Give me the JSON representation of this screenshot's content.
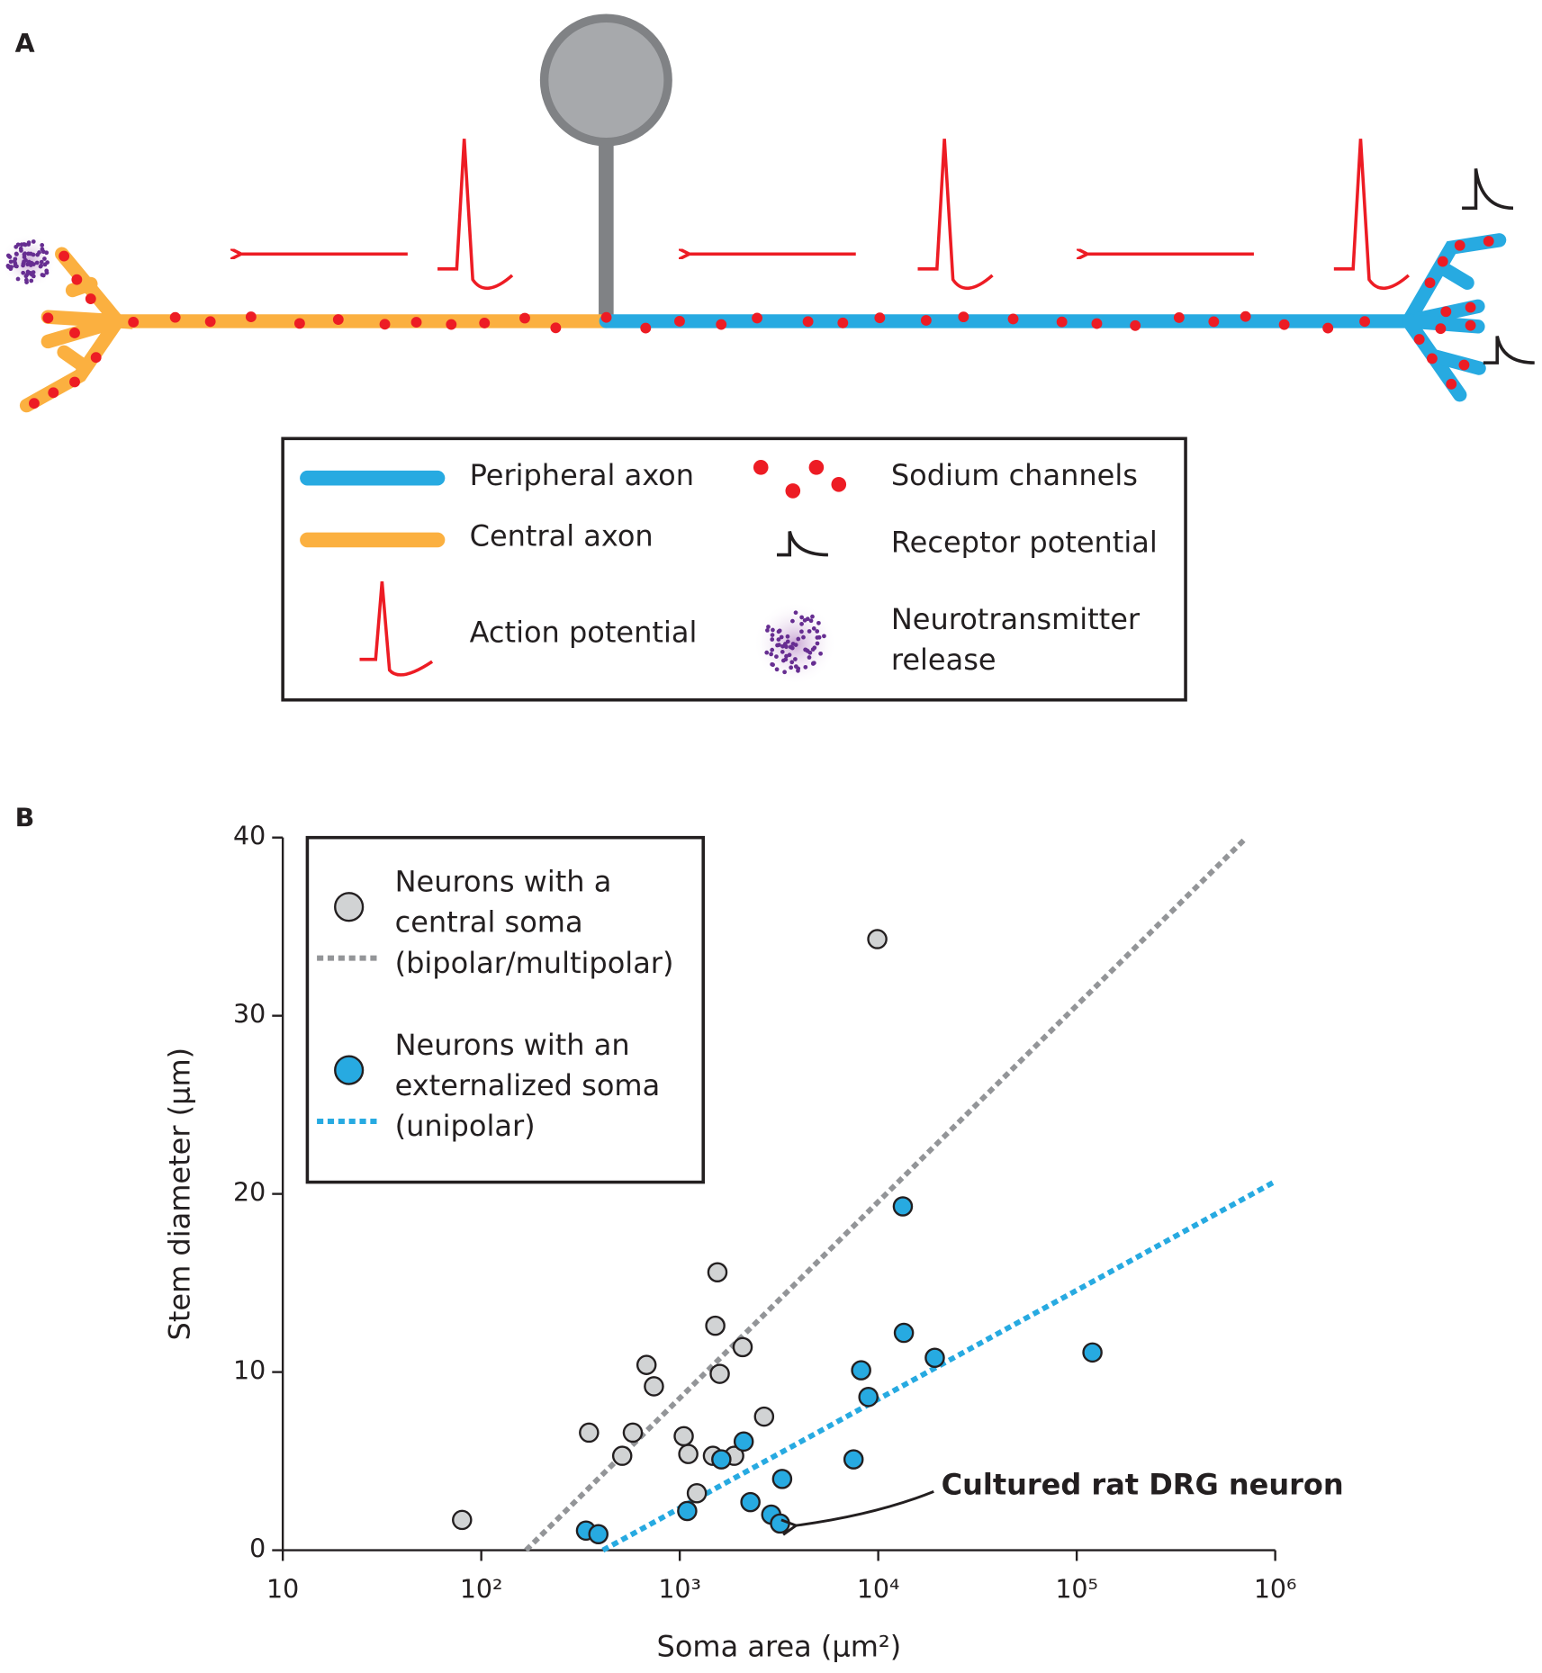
{
  "panel_a": {
    "label": "A",
    "legend": {
      "peripheral": "Peripheral axon",
      "central": "Central axon",
      "action": "Action potential",
      "sodium": "Sodium channels",
      "receptor": "Receptor potential",
      "release": [
        "Neurotransmitter",
        "release"
      ]
    }
  },
  "panel_b_label": "B",
  "chart_data": {
    "type": "scatter",
    "xlabel": "Soma area (μm²)",
    "ylabel": "Stem diameter (μm)",
    "xscale": "log",
    "xlim": [
      10,
      1000000
    ],
    "xticks": [
      10,
      {
        "value": 100,
        "label": "10²"
      },
      {
        "value": 1000,
        "label": "10³"
      },
      {
        "value": 10000,
        "label": "10⁴"
      },
      {
        "value": 100000,
        "label": "10⁵"
      },
      {
        "value": 1000000,
        "label": "10⁶"
      }
    ],
    "ylim": [
      0,
      40
    ],
    "yticks": [
      0,
      10,
      20,
      30,
      40
    ],
    "legend": "upper left",
    "annotation": "Cultured rat DRG neuron",
    "series": [
      {
        "name": [
          "Neurons with a",
          "central soma",
          "(bipolar/multipolar)"
        ],
        "color": "#d1d3d4",
        "line_color": "#939598",
        "x": [
          80,
          349,
          513,
          580,
          680,
          741,
          1047,
          1104,
          1219,
          1469,
          1548,
          1510,
          1590,
          1880,
          2074,
          2660,
          9890
        ],
        "values": [
          1.7,
          6.6,
          5.3,
          6.6,
          10.4,
          9.2,
          6.4,
          5.4,
          3.2,
          5.3,
          15.6,
          12.6,
          9.9,
          5.3,
          11.4,
          7.5,
          34.3
        ],
        "fit": {
          "x": [
            168,
            716000
          ],
          "values": [
            0,
            40
          ]
        }
      },
      {
        "name": [
          "Neurons with an",
          "externalized soma",
          "(unipolar)"
        ],
        "color": "#27aae1",
        "line_color": "#27aae1",
        "x": [
          337,
          389,
          1090,
          1620,
          2100,
          2270,
          2890,
          3200,
          3280,
          7510,
          8200,
          8920,
          13300,
          13460,
          19270,
          120000
        ],
        "values": [
          1.1,
          0.9,
          2.2,
          5.1,
          6.1,
          2.7,
          2.0,
          1.5,
          4.0,
          5.1,
          10.1,
          8.6,
          19.3,
          12.2,
          10.8,
          11.1
        ],
        "fit": {
          "x": [
            410,
            1000000
          ],
          "values": [
            0,
            20.7
          ]
        }
      }
    ]
  }
}
